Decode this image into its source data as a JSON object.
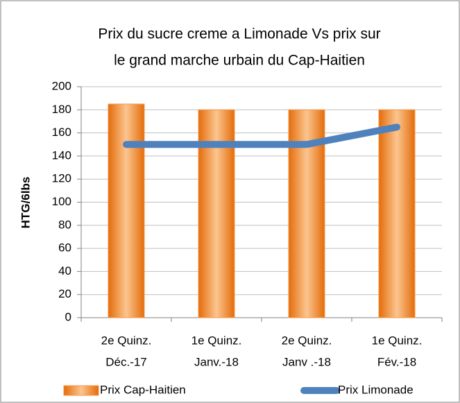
{
  "chart_data": {
    "type": "bar",
    "title": [
      "Prix du sucre creme a Limonade Vs prix sur",
      "le grand marche urbain du Cap-Haitien"
    ],
    "ylabel": "HTG/6lbs",
    "categories": [
      [
        "2e Quinz.",
        "Déc.-17"
      ],
      [
        "1e Quinz.",
        "Janv.-18"
      ],
      [
        "2e Quinz.",
        "Janv .-18"
      ],
      [
        "1e Quinz.",
        "Fév.-18"
      ]
    ],
    "series": [
      {
        "name": "Prix Cap-Haitien",
        "color": "#f79646",
        "type": "bar",
        "values": [
          185,
          180,
          180,
          180
        ]
      },
      {
        "name": "Prix Limonade",
        "color": "#4f81bd",
        "type": "line",
        "values": [
          150,
          150,
          150,
          165
        ]
      }
    ],
    "ylim": [
      0,
      200
    ],
    "yticks": [
      0,
      20,
      40,
      60,
      80,
      100,
      120,
      140,
      160,
      180,
      200
    ],
    "grid": true,
    "legend": "bottom"
  }
}
